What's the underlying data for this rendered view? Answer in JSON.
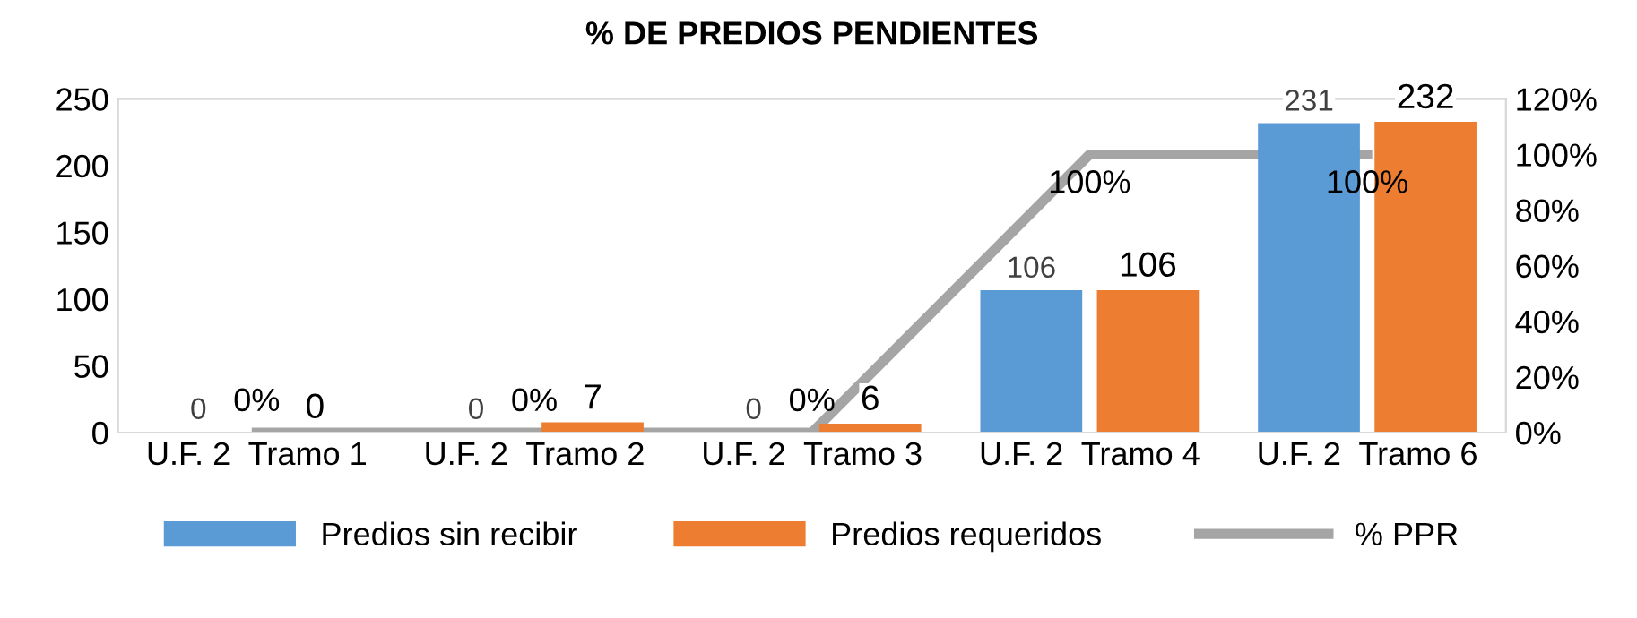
{
  "chart_data": {
    "type": "bar",
    "title": "% DE PREDIOS PENDIENTES",
    "categories": [
      "U.F. 2  Tramo 1",
      "U.F. 2  Tramo 2",
      "U.F. 2  Tramo 3",
      "U.F. 2  Tramo 4",
      "U.F. 2  Tramo 6"
    ],
    "series": [
      {
        "name": "Predios sin recibir",
        "color": "#5b9bd5",
        "values": [
          0,
          0,
          0,
          106,
          231
        ],
        "value_labels": [
          "0",
          "0",
          "0",
          "106",
          "231"
        ]
      },
      {
        "name": "Predios requeridos",
        "color": "#ed7d31",
        "values": [
          0,
          7,
          6,
          106,
          232
        ],
        "value_labels": [
          "0",
          "7",
          "6",
          "106",
          "232"
        ]
      },
      {
        "name": "% PPR",
        "type": "line",
        "axis": "y2",
        "color": "#a5a5a5",
        "values": [
          0,
          0,
          0,
          100,
          100
        ],
        "value_labels": [
          "0%",
          "0%",
          "0%",
          "100%",
          "100%"
        ]
      }
    ],
    "ylim": [
      0,
      250
    ],
    "yticks": [
      0,
      50,
      100,
      150,
      200,
      250
    ],
    "y2lim": [
      0,
      120
    ],
    "y2ticks": [
      {
        "value": 0,
        "label": "0%"
      },
      {
        "value": 20,
        "label": "20%"
      },
      {
        "value": 40,
        "label": "40%"
      },
      {
        "value": 60,
        "label": "60%"
      },
      {
        "value": 80,
        "label": "80%"
      },
      {
        "value": 100,
        "label": "100%"
      },
      {
        "value": 120,
        "label": "120%"
      }
    ],
    "grid": false,
    "legend": "bottom",
    "marker": "none"
  }
}
